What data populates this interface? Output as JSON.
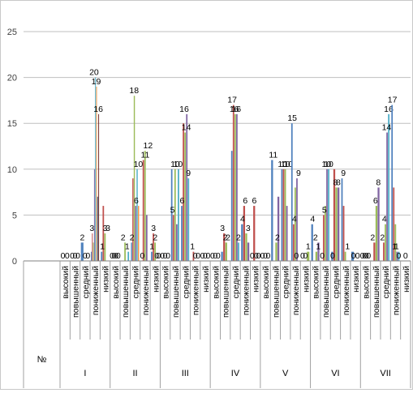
{
  "chart_data": {
    "type": "bar",
    "ylim": [
      0,
      25
    ],
    "yticks": [
      0,
      5,
      10,
      15,
      20,
      25
    ],
    "grid": true,
    "legend": "none",
    "corner_label": "№",
    "groups": [
      "I",
      "II",
      "III",
      "IV",
      "V",
      "VI",
      "VII"
    ],
    "levels": [
      "высокий",
      "повышенный",
      "средний",
      "пониженный",
      "низкий"
    ],
    "series_colors": [
      "#4f81bd",
      "#c0504d",
      "#9bbb59",
      "#8064a2",
      "#4bacc6",
      "#f79646",
      "#2c4d75",
      "#772c2a",
      "#5f7530",
      "#4d3b62",
      "#276a7c",
      "#b65708"
    ],
    "bars": [
      [
        [
          0,
          0
        ],
        [
          0,
          0,
          0
        ],
        [
          2,
          0,
          0
        ],
        [
          1,
          3,
          2,
          10,
          20,
          19,
          7,
          16
        ],
        [
          1,
          6,
          3,
          0,
          0
        ]
      ],
      [
        [
          0,
          0,
          0,
          0
        ],
        [
          0,
          0,
          2,
          0,
          1
        ],
        [
          2,
          9,
          18,
          6,
          10,
          6
        ],
        [
          0,
          11,
          12,
          5,
          0
        ],
        [
          1,
          3,
          2,
          0,
          0
        ]
      ],
      [
        [
          0,
          0,
          0
        ],
        [
          10,
          5,
          10,
          4,
          10
        ],
        [
          6,
          15,
          14,
          16,
          9
        ],
        [
          0,
          1,
          0,
          0,
          0
        ],
        [
          0,
          0,
          0,
          0
        ]
      ],
      [
        [
          0,
          0,
          0
        ],
        [
          1,
          3,
          2,
          0
        ],
        [
          12,
          17,
          16,
          16,
          2
        ],
        [
          4,
          6,
          3,
          2
        ],
        [
          0,
          6,
          0,
          0
        ]
      ],
      [
        [
          0,
          0,
          0
        ],
        [
          11,
          0,
          2,
          7
        ],
        [
          10,
          10,
          10,
          6,
          0
        ],
        [
          15,
          4,
          8,
          9,
          0
        ],
        [
          0,
          0,
          1
        ]
      ],
      [
        [
          4,
          0,
          1,
          2
        ],
        [
          0,
          5,
          6,
          10,
          10
        ],
        [
          1,
          10,
          8,
          8
        ],
        [
          9,
          6,
          1,
          0,
          0
        ],
        [
          1,
          0,
          0
        ]
      ],
      [
        [
          0,
          0,
          0,
          0
        ],
        [
          0,
          2,
          6,
          8
        ],
        [
          0,
          2,
          4,
          14,
          16
        ],
        [
          17,
          8,
          4,
          1,
          1
        ],
        [
          0,
          0
        ]
      ]
    ],
    "data_labels": [
      [
        [
          0,
          0
        ],
        [
          0,
          0,
          0
        ],
        [
          2,
          0,
          0
        ],
        [
          3,
          20,
          19,
          16
        ],
        [
          1,
          3,
          3
        ]
      ],
      [
        [
          0,
          0,
          0,
          0
        ],
        [
          2,
          1
        ],
        [
          2,
          18,
          6,
          10
        ],
        [
          0,
          11,
          12
        ],
        [
          1,
          3,
          2,
          0,
          0
        ]
      ],
      [
        [
          0,
          0,
          0
        ],
        [
          5,
          10,
          10
        ],
        [
          6,
          16,
          14,
          9
        ],
        [
          1,
          0,
          0
        ],
        [
          0,
          0,
          0
        ]
      ],
      [
        [
          0,
          0,
          0
        ],
        [
          3,
          2,
          2
        ],
        [
          17,
          16,
          16,
          2
        ],
        [
          4,
          6,
          3
        ],
        [
          0,
          6,
          0,
          0
        ]
      ],
      [
        [
          0,
          0,
          0
        ],
        [
          11,
          2
        ],
        [
          10,
          10,
          10
        ],
        [
          15,
          4,
          0,
          9
        ],
        [
          0,
          0,
          1
        ]
      ],
      [
        [
          4,
          2,
          1
        ],
        [
          0,
          5,
          10,
          10
        ],
        [
          0,
          8,
          8
        ],
        [
          9,
          1
        ],
        [
          0,
          0
        ]
      ],
      [
        [
          0,
          0,
          0,
          0
        ],
        [
          2,
          6,
          8
        ],
        [
          2,
          4,
          14,
          16
        ],
        [
          17,
          1,
          1,
          0
        ],
        [
          0
        ]
      ]
    ]
  }
}
